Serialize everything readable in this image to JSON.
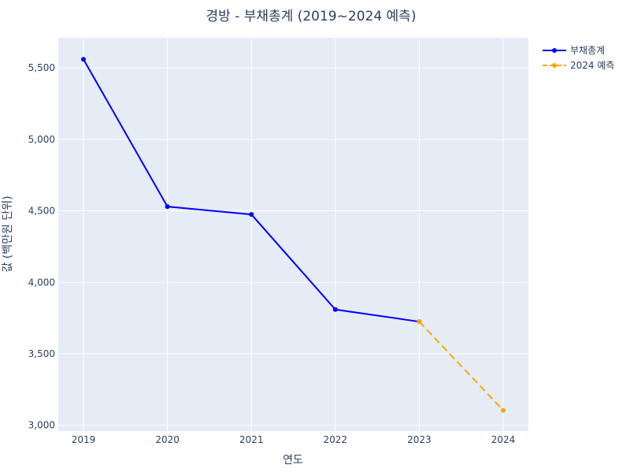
{
  "chart_data": {
    "type": "line",
    "title": "경방 - 부채총계 (2019~2024 예측)",
    "xlabel": "연도",
    "ylabel": "값 (백만원 단위)",
    "x_ticks": [
      "2019",
      "2020",
      "2021",
      "2022",
      "2023",
      "2024"
    ],
    "y_ticks": [
      3000,
      3500,
      4000,
      4500,
      5000,
      5500
    ],
    "y_tick_labels": [
      "3,000",
      "3,500",
      "4,000",
      "4,500",
      "5,000",
      "5,500"
    ],
    "xlim": [
      2018.7,
      2024.3
    ],
    "ylim": [
      2960,
      5710
    ],
    "grid": true,
    "legend_position": "top-right",
    "plot_bg": "#e5ecf6",
    "series": [
      {
        "name": "부채총계",
        "color": "#0000ff",
        "dash": "solid",
        "x": [
          2019,
          2020,
          2021,
          2022,
          2023
        ],
        "values": [
          5560,
          4530,
          4475,
          3810,
          3725
        ]
      },
      {
        "name": "2024 예측",
        "color": "#ffa500",
        "dash": "dash",
        "x": [
          2023,
          2024
        ],
        "values": [
          3725,
          3105
        ]
      }
    ]
  }
}
